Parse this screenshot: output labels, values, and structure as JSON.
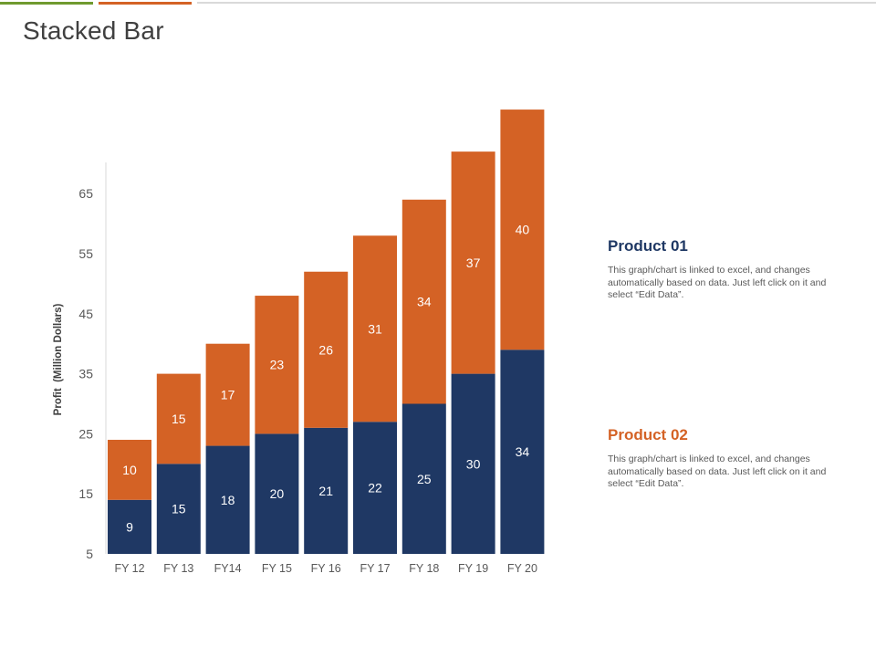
{
  "page": {
    "title": "Stacked Bar"
  },
  "colors": {
    "product1": "#1f3864",
    "product2": "#d46225",
    "accent_green": "#6f9a2f"
  },
  "legend": [
    {
      "name": "Product 01",
      "description": "This graph/chart is linked to excel, and changes automatically based on data. Just left click on it and select “Edit Data”."
    },
    {
      "name": "Product 02",
      "description": "This graph/chart is linked to excel, and changes automatically based on data. Just left click on it and select “Edit Data”."
    }
  ],
  "chart_data": {
    "type": "bar",
    "stacked": true,
    "title": "",
    "xlabel": "",
    "ylabel": "Profit  (Million Dollars)",
    "ylim": [
      5,
      70
    ],
    "yticks": [
      5,
      15,
      25,
      35,
      45,
      55,
      65
    ],
    "categories": [
      "FY 12",
      "FY 13",
      "FY14",
      "FY 15",
      "FY 16",
      "FY 17",
      "FY 18",
      "FY 19",
      "FY 20"
    ],
    "series": [
      {
        "name": "Product 01",
        "values": [
          9,
          15,
          18,
          20,
          21,
          22,
          25,
          30,
          34
        ]
      },
      {
        "name": "Product 02",
        "values": [
          10,
          15,
          17,
          23,
          26,
          31,
          34,
          37,
          40
        ]
      }
    ]
  }
}
